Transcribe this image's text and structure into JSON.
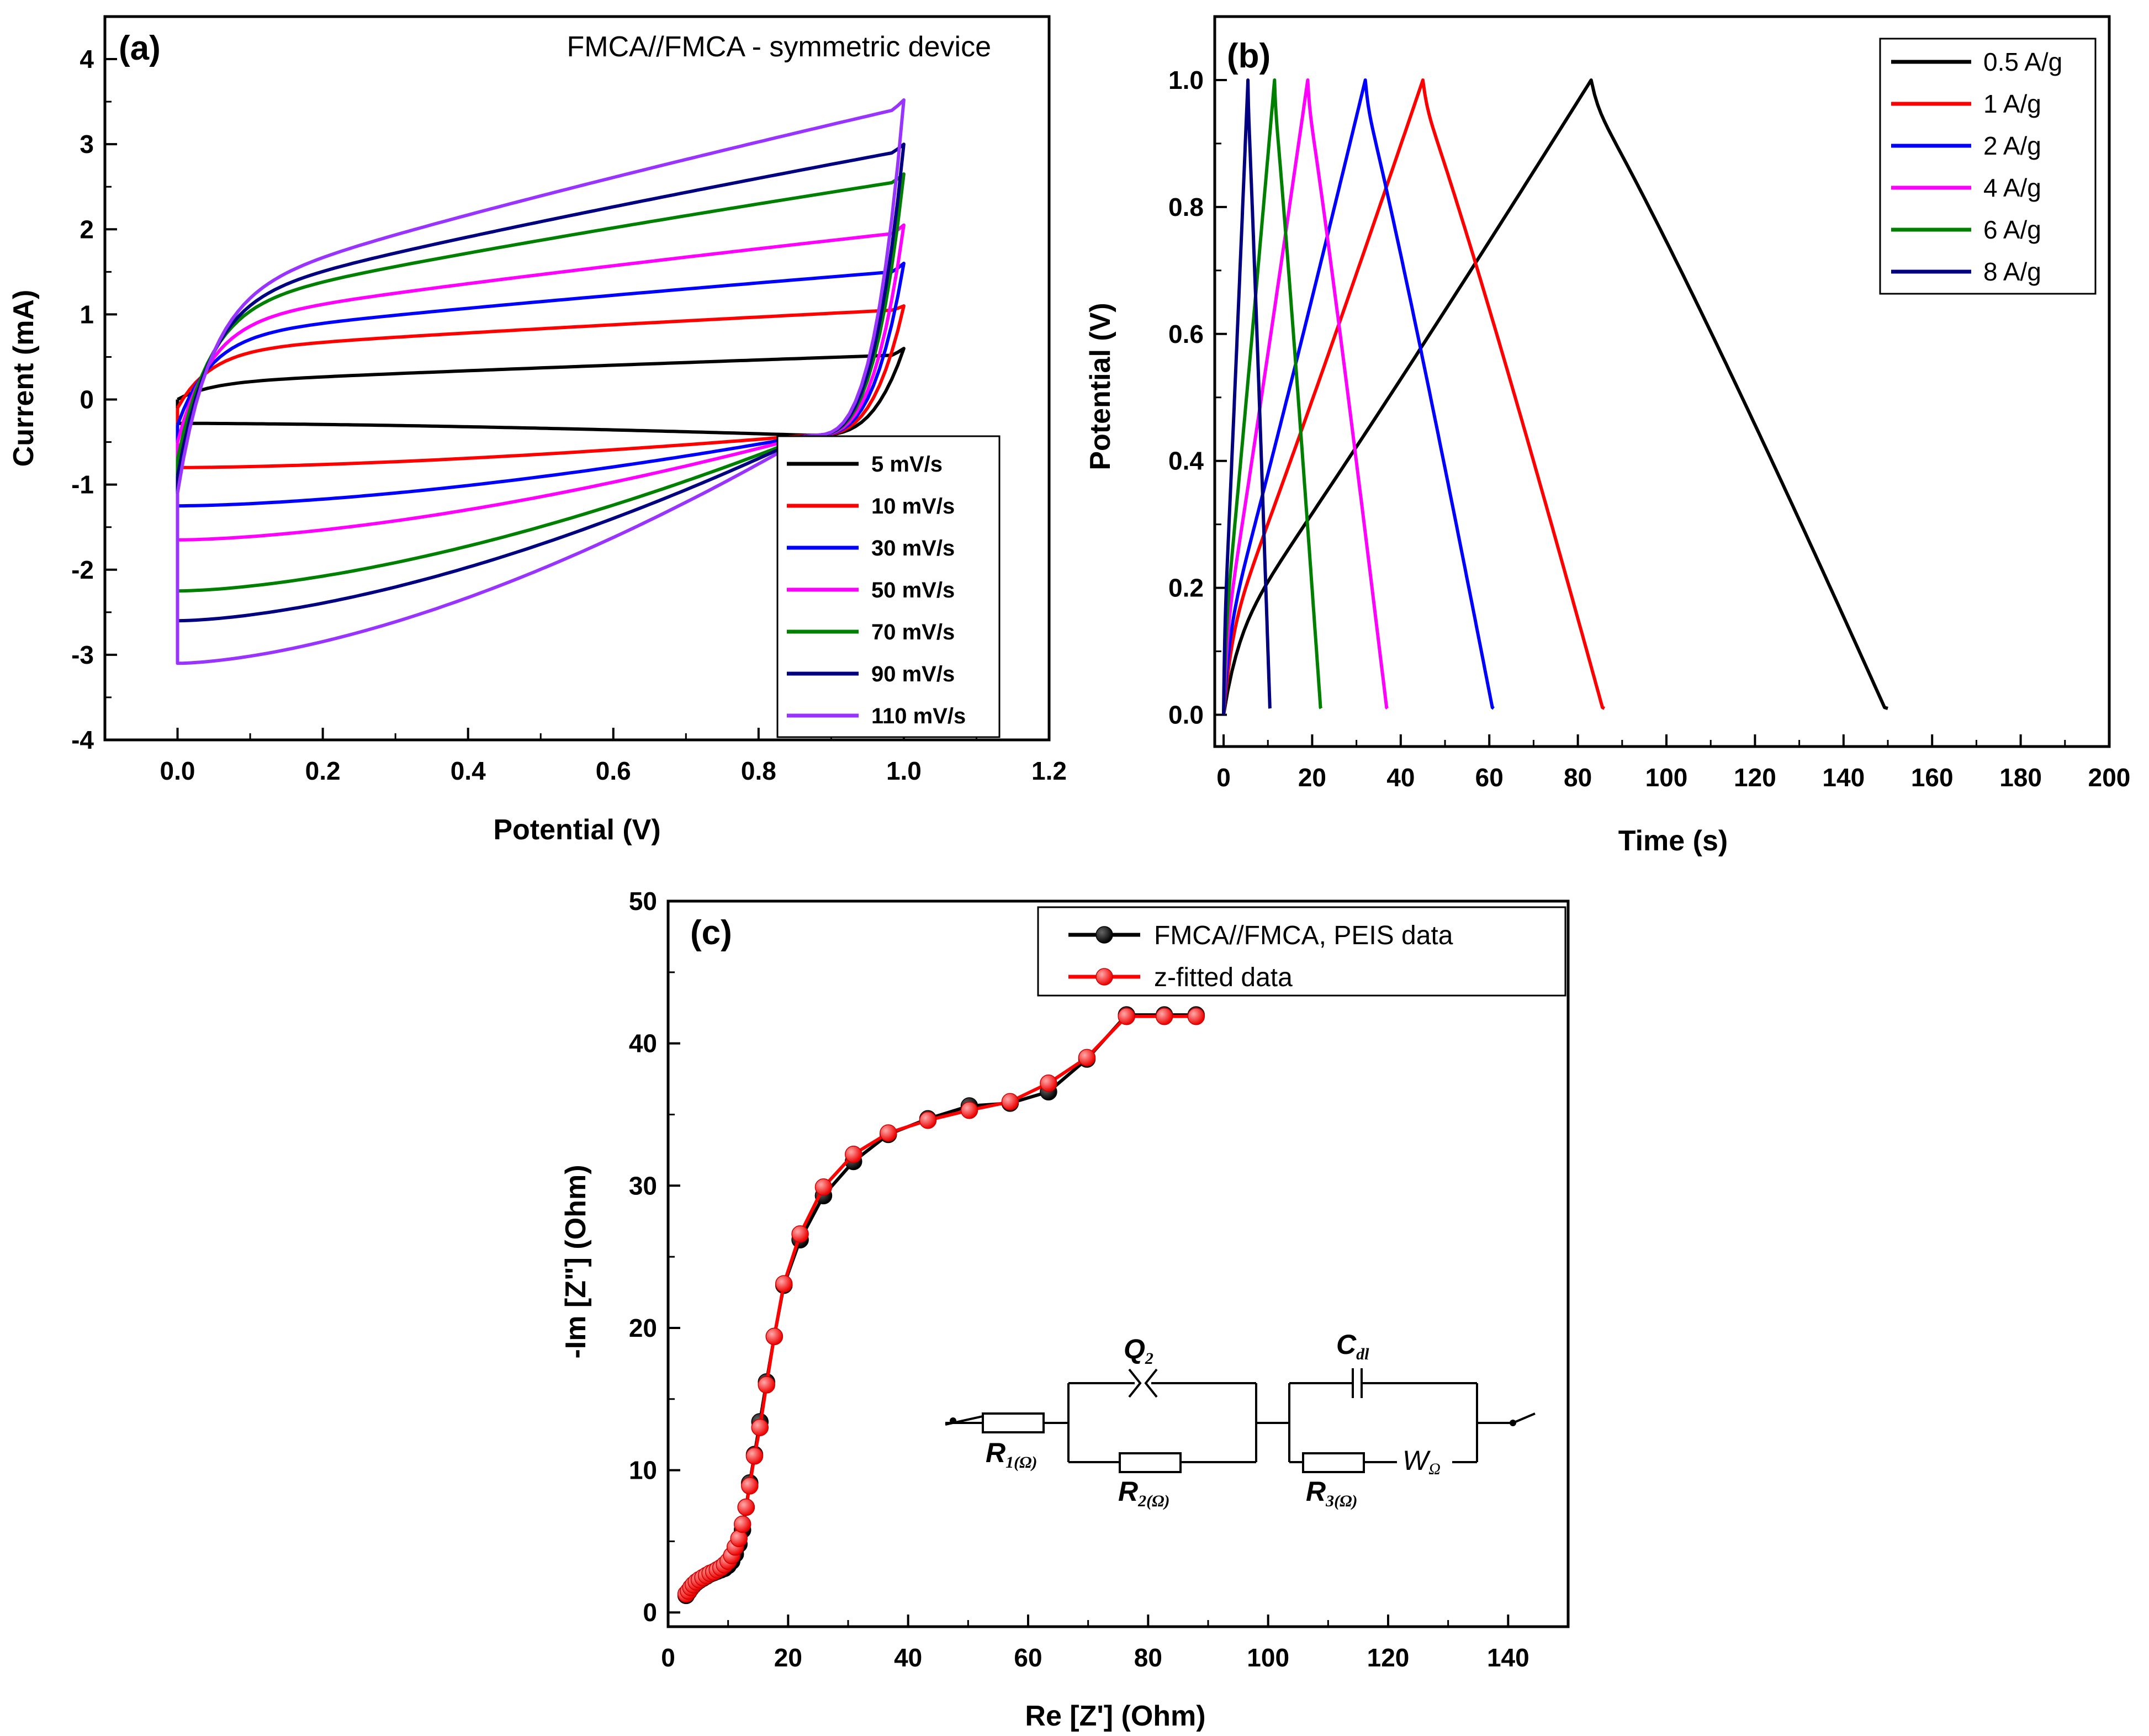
{
  "colors": {
    "black": "#000000",
    "red": "#ff0000",
    "blue": "#0000ff",
    "magenta": "#ff00ff",
    "green": "#008000",
    "navy": "#000080",
    "violet": "#9933ff"
  },
  "chart_data": [
    {
      "id": "a",
      "type": "line",
      "panel_label": "(a)",
      "title": "FMCA//FMCA - symmetric device",
      "xlabel": "Potential (V)",
      "ylabel": "Current (mA)",
      "xlim": [
        -0.1,
        1.2
      ],
      "ylim": [
        -4,
        4.5
      ],
      "xticks": [
        "0.0",
        "0.2",
        "0.4",
        "0.6",
        "0.8",
        "1.0",
        "1.2"
      ],
      "yticks": [
        "-4",
        "-3",
        "-2",
        "-1",
        "0",
        "1",
        "2",
        "3",
        "4"
      ],
      "legend_position": "bottom-right",
      "series": [
        {
          "name": "5 mV/s",
          "scan_rate": 5,
          "color": "black",
          "upper_start": 0.0,
          "upper_knee": 0.18,
          "upper_end": 0.52,
          "upper_vertex": 0.6,
          "lower_start": -0.28,
          "lower_mid": -0.27,
          "lower_flat_end": -0.1,
          "cross": 0.0
        },
        {
          "name": "10 mV/s",
          "scan_rate": 10,
          "color": "red",
          "upper_start": -0.1,
          "upper_knee": 0.55,
          "upper_end": 1.05,
          "upper_vertex": 1.1,
          "lower_start": -0.8,
          "lower_mid": -0.77,
          "lower_flat_end": -0.55,
          "cross": -0.35
        },
        {
          "name": "30 mV/s",
          "scan_rate": 30,
          "color": "blue",
          "upper_start": -0.3,
          "upper_knee": 0.7,
          "upper_end": 1.5,
          "upper_vertex": 1.6,
          "lower_start": -1.25,
          "lower_mid": -1.22,
          "lower_flat_end": -0.9,
          "cross": -0.4
        },
        {
          "name": "50 mV/s",
          "scan_rate": 50,
          "color": "magenta",
          "upper_start": -0.5,
          "upper_knee": 0.85,
          "upper_end": 1.95,
          "upper_vertex": 2.05,
          "lower_start": -1.65,
          "lower_mid": -1.6,
          "lower_flat_end": -1.2,
          "cross": -0.42
        },
        {
          "name": "70 mV/s",
          "scan_rate": 70,
          "color": "green",
          "upper_start": -0.7,
          "upper_knee": 1.0,
          "upper_end": 2.55,
          "upper_vertex": 2.65,
          "lower_start": -2.25,
          "lower_mid": -2.15,
          "lower_flat_end": -1.6,
          "cross": -0.45
        },
        {
          "name": "90 mV/s",
          "scan_rate": 90,
          "color": "navy",
          "upper_start": -0.9,
          "upper_knee": 1.05,
          "upper_end": 2.9,
          "upper_vertex": 3.0,
          "lower_start": -2.6,
          "lower_mid": -2.45,
          "lower_flat_end": -1.85,
          "cross": -0.45
        },
        {
          "name": "110 mV/s",
          "scan_rate": 110,
          "color": "violet",
          "upper_start": -1.1,
          "upper_knee": 1.1,
          "upper_end": 3.4,
          "upper_vertex": 3.52,
          "lower_start": -3.1,
          "lower_mid": -2.9,
          "lower_flat_end": -2.2,
          "cross": -0.47
        }
      ]
    },
    {
      "id": "b",
      "type": "line",
      "panel_label": "(b)",
      "xlabel": "Time (s)",
      "ylabel": "Potential (V)",
      "xlim": [
        -2,
        200
      ],
      "ylim": [
        -0.05,
        1.1
      ],
      "xticks": [
        "0",
        "20",
        "40",
        "60",
        "80",
        "100",
        "120",
        "140",
        "160",
        "180",
        "200"
      ],
      "yticks": [
        "0.0",
        "0.2",
        "0.4",
        "0.6",
        "0.8",
        "1.0"
      ],
      "legend_position": "top-right",
      "series": [
        {
          "name": "0.5 A/g",
          "color": "black",
          "t_peak": 83,
          "t_end": 150
        },
        {
          "name": "1 A/g",
          "color": "red",
          "t_peak": 45,
          "t_end": 86
        },
        {
          "name": "2 A/g",
          "color": "blue",
          "t_peak": 32,
          "t_end": 61
        },
        {
          "name": "4 A/g",
          "color": "magenta",
          "t_peak": 19,
          "t_end": 37
        },
        {
          "name": "6 A/g",
          "color": "green",
          "t_peak": 11.5,
          "t_end": 22
        },
        {
          "name": "8 A/g",
          "color": "navy",
          "t_peak": 5.5,
          "t_end": 10.5
        }
      ]
    },
    {
      "id": "c",
      "type": "scatter",
      "panel_label": "(c)",
      "xlabel": "Re [Z'] (Ohm)",
      "ylabel": "-Im [Z\"] (Ohm)",
      "xlim": [
        0,
        150
      ],
      "ylim": [
        -1,
        50
      ],
      "xticks": [
        "0",
        "20",
        "40",
        "60",
        "80",
        "100",
        "120",
        "140"
      ],
      "yticks": [
        "0",
        "10",
        "20",
        "30",
        "40",
        "50"
      ],
      "legend_position": "top-right",
      "series": [
        {
          "name": "FMCA//FMCA, PEIS data",
          "color": "black",
          "x": [
            3.0,
            3.4,
            3.8,
            4.2,
            4.7,
            5.2,
            5.8,
            6.4,
            7.0,
            7.6,
            8.2,
            8.8,
            9.4,
            10.0,
            10.6,
            11.2,
            11.8,
            12.4,
            13.0,
            13.6,
            14.4,
            15.3,
            16.4,
            17.7,
            19.3,
            22.0,
            25.9,
            30.9,
            36.7,
            43.3,
            50.2,
            57.0,
            63.4,
            69.8,
            76.4,
            82.7,
            88.0
          ],
          "y": [
            1.2,
            1.45,
            1.7,
            1.9,
            2.1,
            2.25,
            2.4,
            2.55,
            2.7,
            2.8,
            2.9,
            3.0,
            3.1,
            3.3,
            3.6,
            4.1,
            4.8,
            5.8,
            7.4,
            9.1,
            11.1,
            13.4,
            16.2,
            19.4,
            23.0,
            26.2,
            29.3,
            31.7,
            33.6,
            34.7,
            35.6,
            35.8,
            36.6,
            38.9,
            42.0,
            42.0,
            42.0
          ]
        },
        {
          "name": "z-fitted data",
          "color": "red",
          "x": [
            3.0,
            3.4,
            3.8,
            4.2,
            4.7,
            5.2,
            5.8,
            6.4,
            7.0,
            7.6,
            8.2,
            8.8,
            9.4,
            10.0,
            10.6,
            11.2,
            11.8,
            12.4,
            13.0,
            13.6,
            14.4,
            15.3,
            16.4,
            17.7,
            19.3,
            22.0,
            25.9,
            30.9,
            36.7,
            43.3,
            50.2,
            57.0,
            63.4,
            69.8,
            76.4,
            82.7,
            88.0
          ],
          "y": [
            1.3,
            1.5,
            1.75,
            1.95,
            2.15,
            2.3,
            2.45,
            2.6,
            2.75,
            2.85,
            3.0,
            3.15,
            3.35,
            3.6,
            4.0,
            4.6,
            5.2,
            6.2,
            7.4,
            8.9,
            11.0,
            13.0,
            16.0,
            19.4,
            23.1,
            26.6,
            29.9,
            32.2,
            33.7,
            34.6,
            35.3,
            35.9,
            37.2,
            39.0,
            41.9,
            41.9,
            41.9
          ]
        }
      ],
      "inset_circuit": {
        "elements": [
          "R1(Ω)",
          "Q2",
          "R2(Ω)",
          "Cdl",
          "R3(Ω)",
          "WΩ"
        ],
        "labels": {
          "r1": "R",
          "r1_sub": "1(Ω)",
          "q2": "Q",
          "q2_sub": "2",
          "r2": "R",
          "r2_sub": "2(Ω)",
          "cdl": "C",
          "cdl_sub": "dl",
          "r3": "R",
          "r3_sub": "3(Ω)",
          "w": "W",
          "w_sub": "Ω"
        }
      }
    }
  ]
}
